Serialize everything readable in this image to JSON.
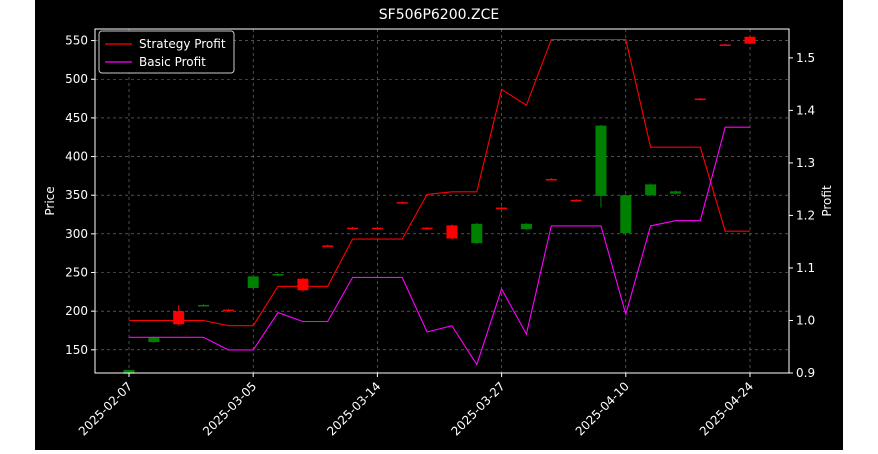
{
  "colors": {
    "background": "#000000",
    "axes": "#ffffff",
    "grid": "#808080",
    "up_candle": "#008000",
    "down_candle": "#ff0000",
    "strategy_line": "#ff0000",
    "basic_line": "#ff00ff"
  },
  "chart_data": {
    "type": "candlestick+line",
    "title": "SF506P6200.ZCE",
    "ylabel_left": "Price",
    "ylabel_right": "Profit",
    "ylim_left": [
      120,
      565
    ],
    "ylim_right": [
      0.9,
      1.555
    ],
    "yticks_left": [
      150,
      200,
      250,
      300,
      350,
      400,
      450,
      500,
      550
    ],
    "yticks_right": [
      0.9,
      1.0,
      1.1,
      1.2,
      1.3,
      1.4,
      1.5
    ],
    "xticks": [
      {
        "index": 0,
        "label": "2025-02-07"
      },
      {
        "index": 5,
        "label": "2025-03-05"
      },
      {
        "index": 10,
        "label": "2025-03-14"
      },
      {
        "index": 15,
        "label": "2025-03-27"
      },
      {
        "index": 20,
        "label": "2025-04-10"
      },
      {
        "index": 25,
        "label": "2025-04-24"
      }
    ],
    "legend": {
      "placement": "top-left",
      "entries": [
        "Strategy Profit",
        "Basic Profit"
      ]
    },
    "grid": true,
    "candles": [
      {
        "i": 0,
        "open": 119,
        "close": 124,
        "high": 124,
        "low": 119
      },
      {
        "i": 1,
        "open": 160,
        "close": 166,
        "high": 167,
        "low": 159
      },
      {
        "i": 2,
        "open": 200,
        "close": 183,
        "high": 208,
        "low": 181
      },
      {
        "i": 3,
        "open": 207,
        "close": 208,
        "high": 209,
        "low": 206
      },
      {
        "i": 4,
        "open": 202,
        "close": 201,
        "high": 203,
        "low": 200
      },
      {
        "i": 5,
        "open": 230,
        "close": 245,
        "high": 246,
        "low": 229
      },
      {
        "i": 6,
        "open": 246,
        "close": 248,
        "high": 249,
        "low": 245
      },
      {
        "i": 7,
        "open": 242,
        "close": 227,
        "high": 243,
        "low": 225
      },
      {
        "i": 8,
        "open": 285,
        "close": 284,
        "high": 286,
        "low": 283
      },
      {
        "i": 9,
        "open": 308,
        "close": 307,
        "high": 309,
        "low": 306
      },
      {
        "i": 10,
        "open": 308,
        "close": 307,
        "high": 309,
        "low": 306
      },
      {
        "i": 11,
        "open": 341,
        "close": 340,
        "high": 342,
        "low": 339
      },
      {
        "i": 12,
        "open": 308,
        "close": 307,
        "high": 309,
        "low": 306
      },
      {
        "i": 13,
        "open": 311,
        "close": 294,
        "high": 312,
        "low": 293
      },
      {
        "i": 14,
        "open": 288,
        "close": 313,
        "high": 314,
        "low": 287
      },
      {
        "i": 15,
        "open": 334,
        "close": 333,
        "high": 335,
        "low": 332
      },
      {
        "i": 16,
        "open": 306,
        "close": 313,
        "high": 314,
        "low": 305
      },
      {
        "i": 17,
        "open": 371,
        "close": 370,
        "high": 372,
        "low": 369
      },
      {
        "i": 18,
        "open": 344,
        "close": 343,
        "high": 345,
        "low": 342
      },
      {
        "i": 19,
        "open": 349,
        "close": 440,
        "high": 441,
        "low": 334
      },
      {
        "i": 20,
        "open": 301,
        "close": 350,
        "high": 351,
        "low": 300
      },
      {
        "i": 21,
        "open": 350,
        "close": 364,
        "high": 365,
        "low": 349
      },
      {
        "i": 22,
        "open": 352,
        "close": 355,
        "high": 356,
        "low": 351
      },
      {
        "i": 23,
        "open": 475,
        "close": 474,
        "high": 476,
        "low": 473
      },
      {
        "i": 24,
        "open": 545,
        "close": 544,
        "high": 546,
        "low": 543
      },
      {
        "i": 25,
        "open": 555,
        "close": 546,
        "high": 556,
        "low": 545
      }
    ],
    "series": [
      {
        "name": "Strategy Profit",
        "x": [
          0,
          1,
          2,
          3,
          4,
          5,
          6,
          7,
          8,
          9,
          10,
          11,
          12,
          13,
          14,
          15,
          16,
          17,
          18,
          19,
          20,
          21,
          22,
          23,
          24,
          25
        ],
        "values": [
          1.0,
          1.0,
          1.0,
          1.0,
          0.99,
          0.99,
          1.065,
          1.065,
          1.065,
          1.155,
          1.155,
          1.155,
          1.24,
          1.245,
          1.245,
          1.44,
          1.41,
          1.535,
          1.535,
          1.535,
          1.535,
          1.33,
          1.33,
          1.33,
          1.17,
          1.17
        ]
      },
      {
        "name": "Basic Profit",
        "x": [
          0,
          1,
          2,
          3,
          4,
          5,
          6,
          7,
          8,
          9,
          10,
          11,
          12,
          13,
          14,
          15,
          16,
          17,
          18,
          19,
          20,
          21,
          22,
          23,
          24,
          25
        ],
        "values": [
          0.968,
          0.968,
          0.968,
          0.968,
          0.944,
          0.944,
          1.015,
          0.998,
          0.998,
          1.082,
          1.082,
          1.082,
          0.978,
          0.99,
          0.916,
          1.06,
          0.974,
          1.18,
          1.18,
          1.18,
          1.012,
          1.18,
          1.19,
          1.19,
          1.368,
          1.368
        ]
      }
    ]
  }
}
